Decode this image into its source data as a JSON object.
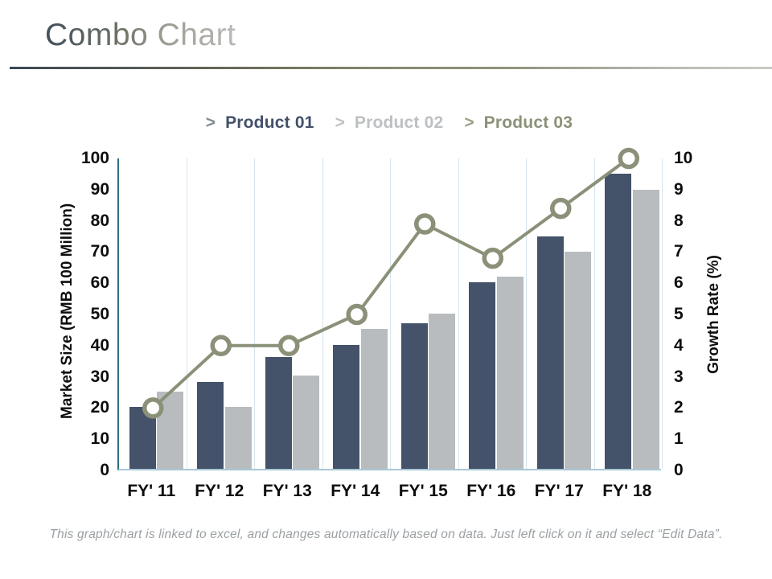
{
  "title": {
    "part1": "Combo",
    "part2": "Chart"
  },
  "legend": [
    {
      "chevron": ">",
      "chevron_color": "#7e8a90",
      "label": "Product 01",
      "label_color": "#43506a"
    },
    {
      "chevron": ">",
      "chevron_color": "#c0c3c4",
      "label": "Product 02",
      "label_color": "#bdc0c2"
    },
    {
      "chevron": ">",
      "chevron_color": "#9aa085",
      "label": "Product 03",
      "label_color": "#8a9178"
    }
  ],
  "footer": "This graph/chart is linked to excel, and changes automatically based on data. Just left click on it and select “Edit Data”.",
  "chart_data": {
    "type": "bar",
    "subtype": "combo-bar-line",
    "categories": [
      "FY' 11",
      "FY' 12",
      "FY' 13",
      "FY' 14",
      "FY' 15",
      "FY' 16",
      "FY' 17",
      "FY' 18"
    ],
    "series": [
      {
        "name": "Product 01",
        "type": "bar",
        "axis": "left",
        "color": "#44526a",
        "values": [
          20,
          28,
          36,
          40,
          47,
          60,
          75,
          95
        ]
      },
      {
        "name": "Product 02",
        "type": "bar",
        "axis": "left",
        "color": "#b9bcbe",
        "values": [
          25,
          20,
          30,
          45,
          50,
          62,
          70,
          90
        ]
      },
      {
        "name": "Product 03",
        "type": "line",
        "axis": "right",
        "color": "#8a9178",
        "values": [
          2,
          4,
          4,
          5,
          7.9,
          6.8,
          8.4,
          10
        ]
      }
    ],
    "left_axis": {
      "label": "Market Size (RMB 100 Million)",
      "min": 0,
      "max": 100,
      "step": 10
    },
    "right_axis": {
      "label": "Growth Rate (%)",
      "min": 0,
      "max": 10,
      "step": 1
    },
    "grid": "vertical-only",
    "legend_position": "top",
    "marker": {
      "shape": "circle",
      "fill": "#ffffff"
    }
  },
  "colors": {
    "axis_line_left": "#2f6e82",
    "axis_line_bottom": "#a6c9d6",
    "gridline": "#d4e5ee",
    "tick_text": "#0d0d0d",
    "footer_text": "#9aa0a3"
  }
}
